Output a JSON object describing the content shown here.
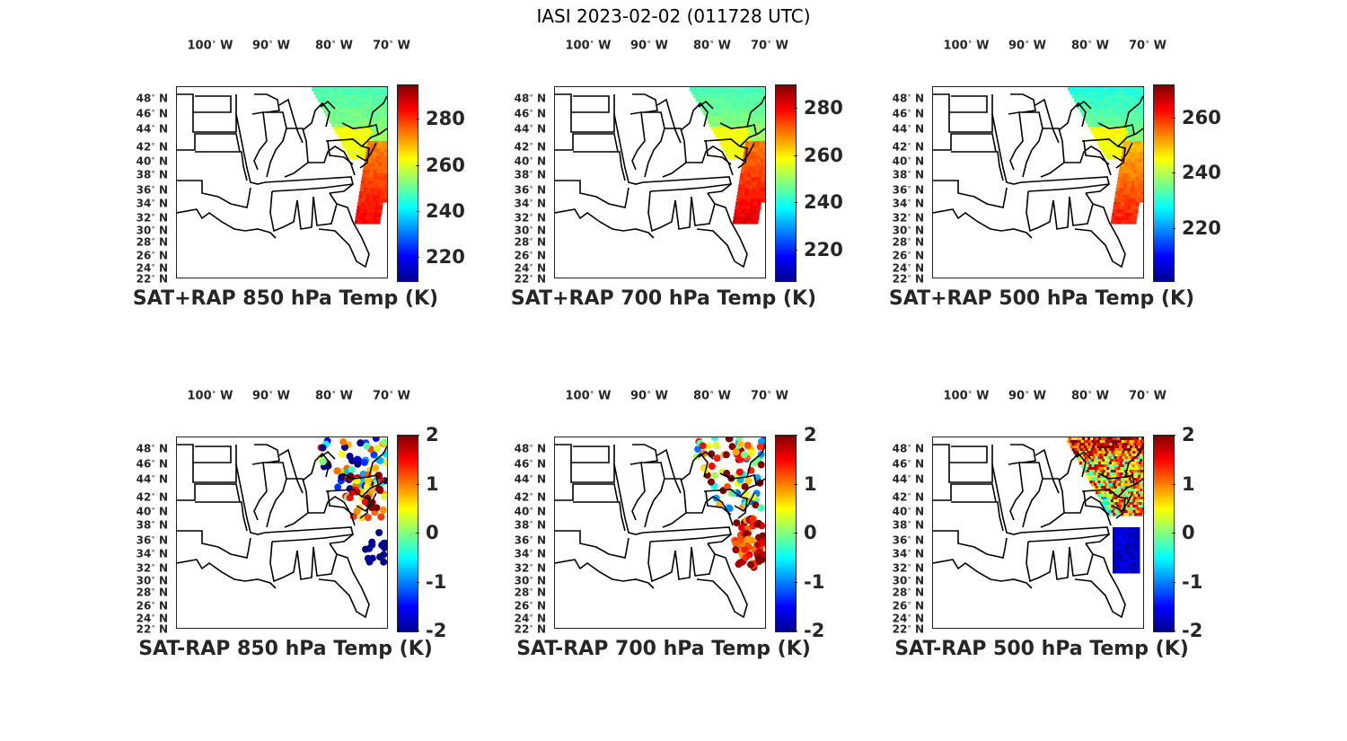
{
  "figure_title": "IASI 2023-02-02 (011728 UTC)",
  "lon_ticks": [
    {
      "deg": "100",
      "hemi": "W"
    },
    {
      "deg": "90",
      "hemi": "W"
    },
    {
      "deg": "80",
      "hemi": "W"
    },
    {
      "deg": "70",
      "hemi": "W"
    }
  ],
  "lat_ticks": [
    {
      "deg": "48",
      "hemi": "N"
    },
    {
      "deg": "46",
      "hemi": "N"
    },
    {
      "deg": "44",
      "hemi": "N"
    },
    {
      "deg": "42",
      "hemi": "N"
    },
    {
      "deg": "40",
      "hemi": "N"
    },
    {
      "deg": "38",
      "hemi": "N"
    },
    {
      "deg": "36",
      "hemi": "N"
    },
    {
      "deg": "34",
      "hemi": "N"
    },
    {
      "deg": "32",
      "hemi": "N"
    },
    {
      "deg": "30",
      "hemi": "N"
    },
    {
      "deg": "28",
      "hemi": "N"
    },
    {
      "deg": "26",
      "hemi": "N"
    },
    {
      "deg": "24",
      "hemi": "N"
    },
    {
      "deg": "22",
      "hemi": "N"
    }
  ],
  "colormap": "jet",
  "panels": [
    {
      "title": "SAT+RAP 850 hPa Temp (K)",
      "colorbar": {
        "min": 210,
        "max": 295,
        "ticks": [
          "220",
          "240",
          "260",
          "280"
        ],
        "tick_values": [
          220,
          240,
          260,
          280
        ]
      },
      "field": "sum"
    },
    {
      "title": "SAT+RAP 700 hPa Temp (K)",
      "colorbar": {
        "min": 207,
        "max": 290,
        "ticks": [
          "220",
          "240",
          "260",
          "280"
        ],
        "tick_values": [
          220,
          240,
          260,
          280
        ]
      },
      "field": "sum"
    },
    {
      "title": "SAT+RAP 500 hPa Temp (K)",
      "colorbar": {
        "min": 201,
        "max": 272,
        "ticks": [
          "220",
          "240",
          "260"
        ],
        "tick_values": [
          220,
          240,
          260
        ]
      },
      "field": "sum"
    },
    {
      "title": "SAT-RAP 850 hPa Temp (K)",
      "colorbar": {
        "min": -2,
        "max": 2,
        "ticks": [
          "2",
          "1",
          "0",
          "-1",
          "-2"
        ],
        "tick_values": [
          2,
          1,
          0,
          -1,
          -2
        ]
      },
      "field": "diff"
    },
    {
      "title": "SAT-RAP 700 hPa Temp (K)",
      "colorbar": {
        "min": -2,
        "max": 2,
        "ticks": [
          "2",
          "1",
          "0",
          "-1",
          "-2"
        ],
        "tick_values": [
          2,
          1,
          0,
          -1,
          -2
        ]
      },
      "field": "diff"
    },
    {
      "title": "SAT-RAP 500 hPa Temp (K)",
      "colorbar": {
        "min": -2,
        "max": 2,
        "ticks": [
          "2",
          "1",
          "0",
          "-1",
          "-2"
        ],
        "tick_values": [
          2,
          1,
          0,
          -1,
          -2
        ]
      },
      "field": "diff"
    }
  ]
}
